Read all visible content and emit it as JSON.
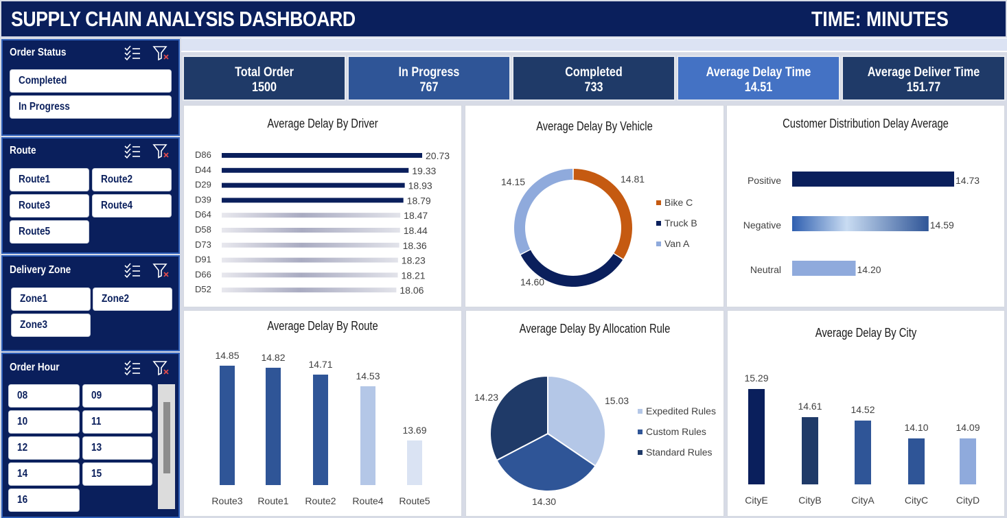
{
  "header": {
    "title": "SUPPLY CHAIN ANALYSIS DASHBOARD",
    "time_label": "TIME: MINUTES"
  },
  "slicers": {
    "order_status": {
      "title": "Order Status",
      "items": [
        "Completed",
        "In Progress"
      ]
    },
    "route": {
      "title": "Route",
      "items": [
        "Route1",
        "Route2",
        "Route3",
        "Route4",
        "Route5"
      ]
    },
    "delivery_zone": {
      "title": "Delivery Zone",
      "items": [
        "Zone1",
        "Zone2",
        "Zone3"
      ]
    },
    "order_hour": {
      "title": "Order Hour",
      "items": [
        "08",
        "09",
        "10",
        "11",
        "12",
        "13",
        "14",
        "15",
        "16"
      ]
    }
  },
  "kpis": [
    {
      "label": "Total Order",
      "value": "1500",
      "color": "#1f3a68"
    },
    {
      "label": "In Progress",
      "value": "767",
      "color": "#2f5597"
    },
    {
      "label": "Completed",
      "value": "733",
      "color": "#1f3a68"
    },
    {
      "label": "Average Delay Time",
      "value": "14.51",
      "color": "#4472c4"
    },
    {
      "label": "Average Deliver Time",
      "value": "151.77",
      "color": "#1f3a68"
    }
  ],
  "colors": {
    "navy": "#0a1f5c",
    "blue": "#2f5597",
    "light_blue": "#8faadc",
    "pale_blue": "#b4c7e7",
    "orange": "#c55a11"
  },
  "chart_data": [
    {
      "type": "bar",
      "orientation": "horizontal",
      "title": "Average Delay By Driver",
      "categories": [
        "D86",
        "D44",
        "D29",
        "D39",
        "D64",
        "D58",
        "D73",
        "D91",
        "D66",
        "D52"
      ],
      "values": [
        20.73,
        19.33,
        18.93,
        18.79,
        18.47,
        18.44,
        18.36,
        18.23,
        18.21,
        18.06
      ],
      "labels": [
        "20.73",
        "19.33",
        "18.93",
        "18.79",
        "18.47",
        "18.44",
        "18.36",
        "18.23",
        "18.21",
        "18.06"
      ]
    },
    {
      "type": "pie",
      "variant": "donut",
      "title": "Average Delay By Vehicle",
      "categories": [
        "Bike C",
        "Truck B",
        "Van A"
      ],
      "values": [
        14.81,
        14.6,
        14.15
      ],
      "labels": [
        "14.81",
        "14.60",
        "14.15"
      ],
      "colors": [
        "#c55a11",
        "#0a1f5c",
        "#8faadc"
      ],
      "legend": "right"
    },
    {
      "type": "bar",
      "orientation": "horizontal",
      "title": "Customer Distribution Delay Average",
      "categories": [
        "Positive",
        "Negative",
        "Neutral"
      ],
      "values": [
        14.73,
        14.59,
        14.2
      ],
      "labels": [
        "14.73",
        "14.59",
        "14.20"
      ]
    },
    {
      "type": "bar",
      "title": "Average Delay By Route",
      "categories": [
        "Route3",
        "Route1",
        "Route2",
        "Route4",
        "Route5"
      ],
      "values": [
        14.85,
        14.82,
        14.71,
        14.53,
        13.69
      ],
      "labels": [
        "14.85",
        "14.82",
        "14.71",
        "14.53",
        "13.69"
      ],
      "colors": [
        "#2f5597",
        "#2f5597",
        "#2f5597",
        "#b4c7e7",
        "#dae3f3"
      ]
    },
    {
      "type": "pie",
      "title": "Average Delay By Allocation Rule",
      "categories": [
        "Expedited Rules",
        "Custom Rules",
        "Standard Rules"
      ],
      "values": [
        15.03,
        14.3,
        14.23
      ],
      "labels": [
        "15.03",
        "14.30",
        "14.23"
      ],
      "colors": [
        "#b4c7e7",
        "#2f5597",
        "#1f3a68"
      ],
      "legend": "right"
    },
    {
      "type": "bar",
      "title": "Average Delay By City",
      "categories": [
        "CityE",
        "CityB",
        "CityA",
        "CityC",
        "CityD"
      ],
      "values": [
        15.29,
        14.61,
        14.52,
        14.1,
        14.09
      ],
      "labels": [
        "15.29",
        "14.61",
        "14.52",
        "14.10",
        "14.09"
      ],
      "colors": [
        "#0a1f5c",
        "#1f3a68",
        "#2f5597",
        "#2f5597",
        "#8faadc"
      ]
    }
  ]
}
